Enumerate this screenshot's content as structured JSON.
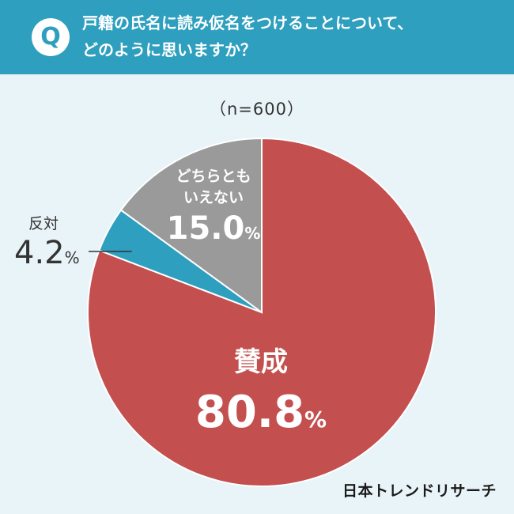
{
  "header": {
    "badge": "Q",
    "question_line1": "戸籍の氏名に読み仮名をつけることについて、",
    "question_line2": "どのように思いますか？"
  },
  "sample_size": "（n=600）",
  "brand": "日本トレンドリサーチ",
  "chart_data": {
    "type": "pie",
    "title": "",
    "start": "top, clockwise",
    "slices": [
      {
        "label": "賛成",
        "value": 80.8,
        "display": "80.8",
        "color": "#c44f4f"
      },
      {
        "label": "反対",
        "value": 4.2,
        "display": "4.2",
        "color": "#2e9fbe"
      },
      {
        "label": "どちらともいえない",
        "value": 15.0,
        "display": "15.0",
        "color": "#9a9a9a"
      }
    ],
    "percent_sign": "%"
  }
}
